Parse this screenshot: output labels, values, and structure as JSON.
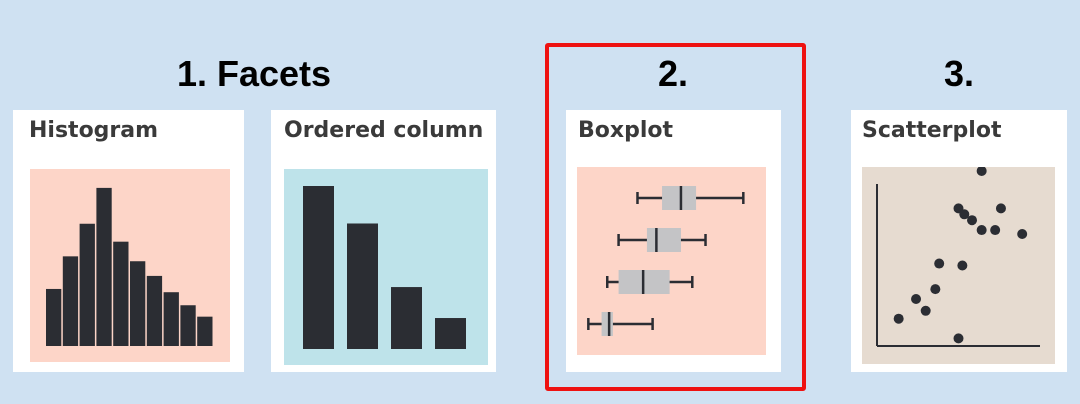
{
  "groups": {
    "facets_label": "1. Facets",
    "boxplot_label": "2.",
    "scatter_label": "3."
  },
  "cards": {
    "histogram": {
      "title": "Histogram",
      "background": "#fdd5c8",
      "bar_color": "#2b2d33",
      "values": [
        0.35,
        0.55,
        0.75,
        0.97,
        0.64,
        0.52,
        0.43,
        0.33,
        0.25,
        0.18
      ]
    },
    "ordered_column": {
      "title": "Ordered column",
      "background": "#bee3ea",
      "bar_color": "#2b2d33",
      "values": [
        1.0,
        0.77,
        0.38,
        0.19
      ]
    },
    "boxplot": {
      "title": "Boxplot",
      "background": "#fdd5c8",
      "box_color": "#c4c4c6",
      "line_color": "#2b2d33",
      "rows": [
        {
          "min": 0.32,
          "q1": 0.45,
          "median": 0.55,
          "q3": 0.63,
          "max": 0.88
        },
        {
          "min": 0.22,
          "q1": 0.37,
          "median": 0.42,
          "q3": 0.55,
          "max": 0.68
        },
        {
          "min": 0.16,
          "q1": 0.22,
          "median": 0.35,
          "q3": 0.49,
          "max": 0.61
        },
        {
          "min": 0.06,
          "q1": 0.13,
          "median": 0.17,
          "q3": 0.19,
          "max": 0.4
        }
      ]
    },
    "scatterplot": {
      "title": "Scatterplot",
      "background": "#e6dbd0",
      "dot_color": "#2b2d33",
      "points": [
        [
          0.19,
          0.23
        ],
        [
          0.28,
          0.33
        ],
        [
          0.33,
          0.27
        ],
        [
          0.38,
          0.38
        ],
        [
          0.4,
          0.51
        ],
        [
          0.52,
          0.5
        ],
        [
          0.5,
          0.79
        ],
        [
          0.53,
          0.76
        ],
        [
          0.57,
          0.73
        ],
        [
          0.62,
          0.68
        ],
        [
          0.72,
          0.79
        ],
        [
          0.83,
          0.66
        ],
        [
          0.69,
          0.68
        ],
        [
          0.62,
          0.98
        ],
        [
          0.5,
          0.13
        ]
      ]
    }
  },
  "highlight_color": "#ee1111"
}
